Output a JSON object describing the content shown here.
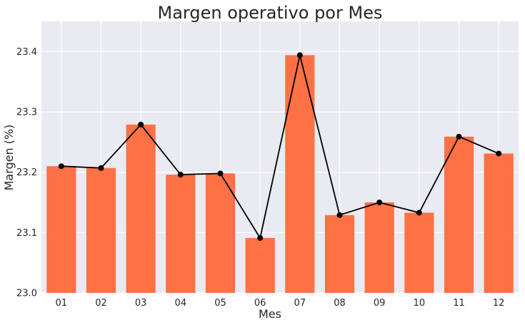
{
  "chart_data": {
    "type": "bar",
    "title": "Margen operativo por Mes",
    "xlabel": "Mes",
    "ylabel": "Margen (%)",
    "categories": [
      "01",
      "02",
      "03",
      "04",
      "05",
      "06",
      "07",
      "08",
      "09",
      "10",
      "11",
      "12"
    ],
    "values": [
      23.21,
      23.207,
      23.279,
      23.196,
      23.198,
      23.091,
      23.394,
      23.129,
      23.15,
      23.133,
      23.259,
      23.231
    ],
    "ylim": [
      23.0,
      23.45
    ],
    "yticks": [
      "23.0",
      "23.1",
      "23.2",
      "23.3",
      "23.4"
    ],
    "grid": true,
    "overlay_line": true,
    "colors": {
      "background": "#eaeaf2",
      "grid": "#ffffff",
      "bar": "#ff6a3a",
      "line": "#000000"
    }
  }
}
